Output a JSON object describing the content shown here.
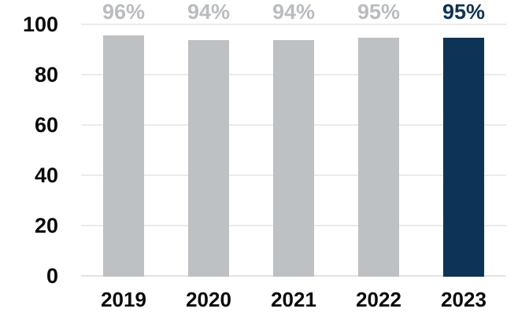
{
  "chart_data": {
    "type": "bar",
    "title": "",
    "xlabel": "",
    "ylabel": "",
    "categories": [
      "2019",
      "2020",
      "2021",
      "2022",
      "2023"
    ],
    "values": [
      96,
      94,
      94,
      95,
      95
    ],
    "value_labels": [
      "96%",
      "94%",
      "94%",
      "95%",
      "95%"
    ],
    "highlight_index": 4,
    "ylim": [
      0,
      100
    ],
    "y_ticks": [
      0,
      20,
      40,
      60,
      80,
      100
    ],
    "y_tick_labels": [
      "0",
      "20",
      "40",
      "60",
      "80",
      "100"
    ],
    "grid": "horizontal gridlines on",
    "legend": "none"
  },
  "colors": {
    "background": "#ffffff",
    "bar_default": "#bdc1c3",
    "bar_highlight": "#0d3356",
    "value_label_default": "#b9bdc1",
    "value_label_highlight": "#0d3356",
    "axis_text": "#0a0a0a",
    "gridline": "#ecebea",
    "baseline": "#e4e3e2"
  }
}
